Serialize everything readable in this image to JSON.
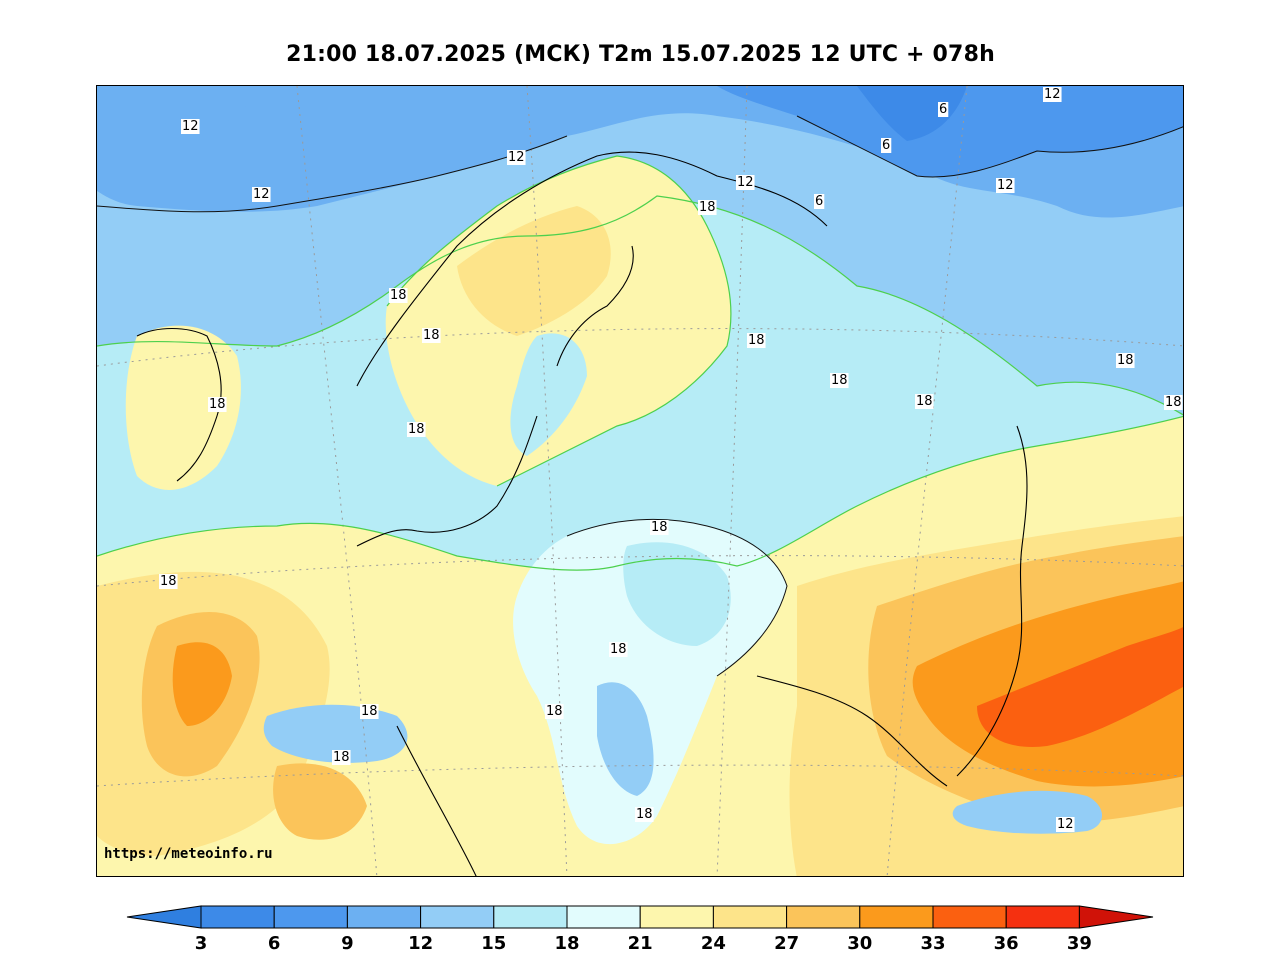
{
  "title": "21:00 18.07.2025 (МСК) T2m 15.07.2025 12 UTC + 078h",
  "credit": "https://meteoinfo.ru",
  "colorbar": {
    "ticks": [
      "3",
      "6",
      "9",
      "12",
      "15",
      "18",
      "21",
      "24",
      "27",
      "30",
      "33",
      "36",
      "39"
    ],
    "colors": [
      "#2f7fe0",
      "#3d8ae8",
      "#4d98ee",
      "#6cb0f2",
      "#93cdf6",
      "#b6ecf6",
      "#e2fcfd",
      "#fdf6ad",
      "#fde48a",
      "#fbc45a",
      "#fb9a1c",
      "#fb6010",
      "#f53010",
      "#d01208"
    ]
  },
  "contour_labels": [
    "12",
    "12",
    "12",
    "12",
    "12",
    "12",
    "12",
    "6",
    "6",
    "6",
    "18",
    "18",
    "18",
    "18",
    "18",
    "18",
    "18",
    "18",
    "18",
    "18",
    "18",
    "18",
    "18",
    "18",
    "18",
    "18",
    "18"
  ]
}
